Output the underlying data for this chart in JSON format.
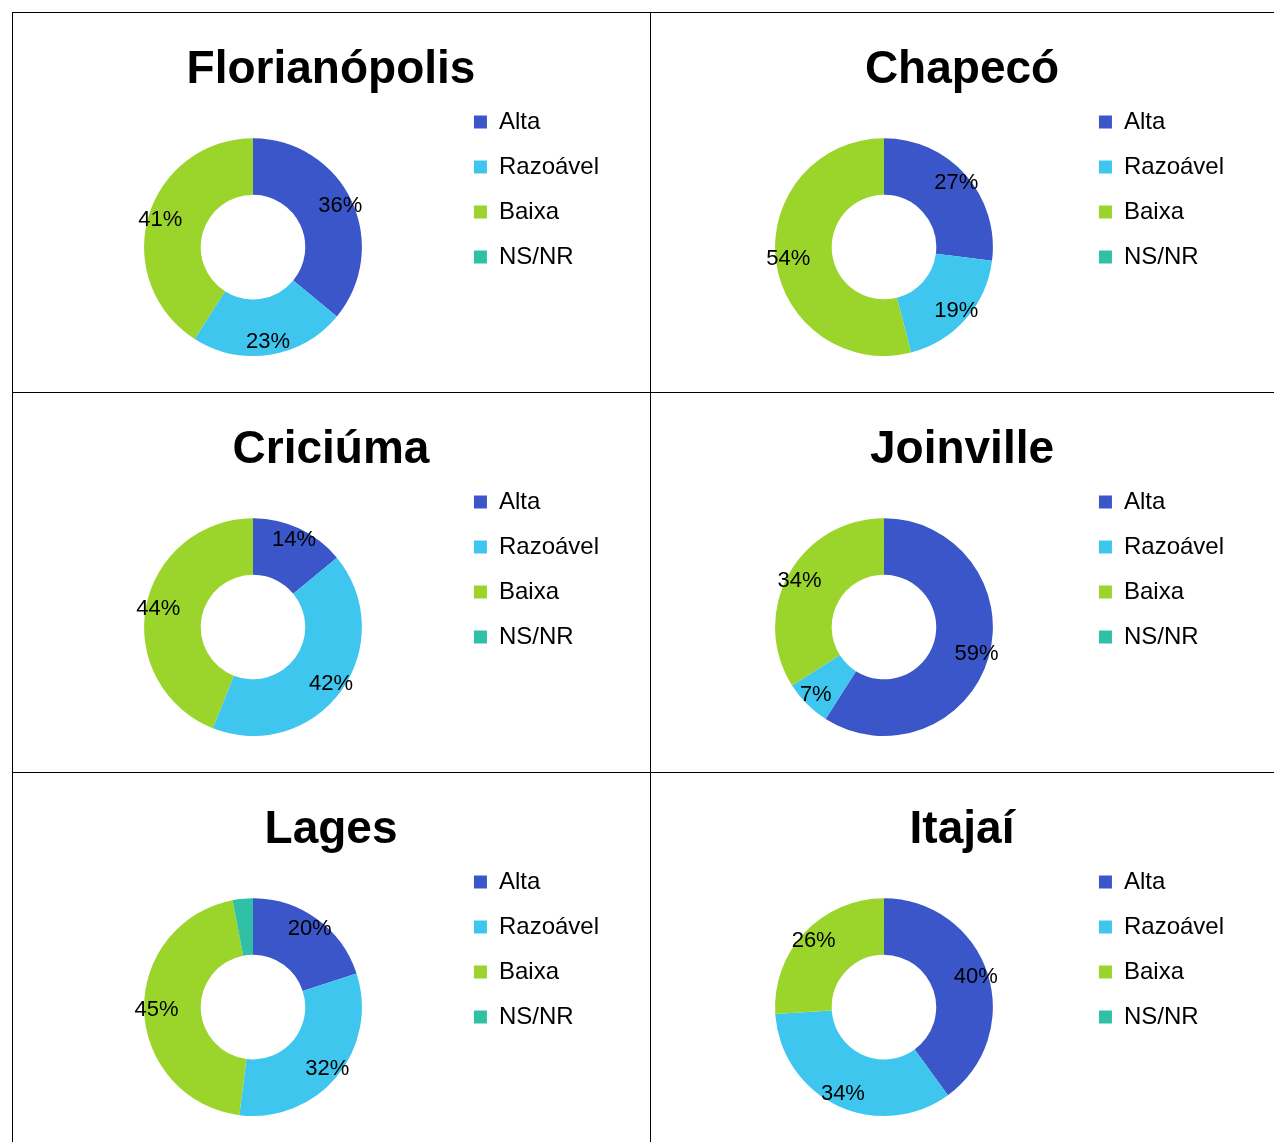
{
  "chart_data": [
    {
      "type": "donut",
      "title": "Florianópolis",
      "categories": [
        "Alta",
        "Razoável",
        "Baixa",
        "NS/NR"
      ],
      "values": [
        36,
        23,
        41,
        0
      ],
      "colors": [
        "#3a56c8",
        "#3ec6ef",
        "#9bd52c",
        "#2fc0a6"
      ],
      "value_labels": [
        "36%",
        "23%",
        "41%",
        null
      ],
      "legend": "right"
    },
    {
      "type": "donut",
      "title": "Chapecó",
      "categories": [
        "Alta",
        "Razoável",
        "Baixa",
        "NS/NR"
      ],
      "values": [
        27,
        19,
        54,
        0
      ],
      "colors": [
        "#3a56c8",
        "#3ec6ef",
        "#9bd52c",
        "#2fc0a6"
      ],
      "value_labels": [
        "27%",
        "19%",
        "54%",
        null
      ],
      "legend": "right"
    },
    {
      "type": "donut",
      "title": "Criciúma",
      "categories": [
        "Alta",
        "Razoável",
        "Baixa",
        "NS/NR"
      ],
      "values": [
        14,
        42,
        44,
        0
      ],
      "colors": [
        "#3a56c8",
        "#3ec6ef",
        "#9bd52c",
        "#2fc0a6"
      ],
      "value_labels": [
        "14%",
        "42%",
        "44%",
        null
      ],
      "legend": "right"
    },
    {
      "type": "donut",
      "title": "Joinville",
      "categories": [
        "Alta",
        "Razoável",
        "Baixa",
        "NS/NR"
      ],
      "values": [
        59,
        7,
        34,
        0
      ],
      "colors": [
        "#3a56c8",
        "#3ec6ef",
        "#9bd52c",
        "#2fc0a6"
      ],
      "value_labels": [
        "59%",
        "7%",
        "34%",
        null
      ],
      "legend": "right"
    },
    {
      "type": "donut",
      "title": "Lages",
      "categories": [
        "Alta",
        "Razoável",
        "Baixa",
        "NS/NR"
      ],
      "values": [
        20,
        32,
        45,
        3
      ],
      "colors": [
        "#3a56c8",
        "#3ec6ef",
        "#9bd52c",
        "#2fc0a6"
      ],
      "value_labels": [
        "20%",
        "32%",
        "45%",
        null
      ],
      "legend": "right"
    },
    {
      "type": "donut",
      "title": "Itajaí",
      "categories": [
        "Alta",
        "Razoável",
        "Baixa",
        "NS/NR"
      ],
      "values": [
        40,
        34,
        26,
        0
      ],
      "colors": [
        "#3a56c8",
        "#3ec6ef",
        "#9bd52c",
        "#2fc0a6"
      ],
      "value_labels": [
        "40%",
        "34%",
        "26%",
        null
      ],
      "legend": "right"
    }
  ]
}
